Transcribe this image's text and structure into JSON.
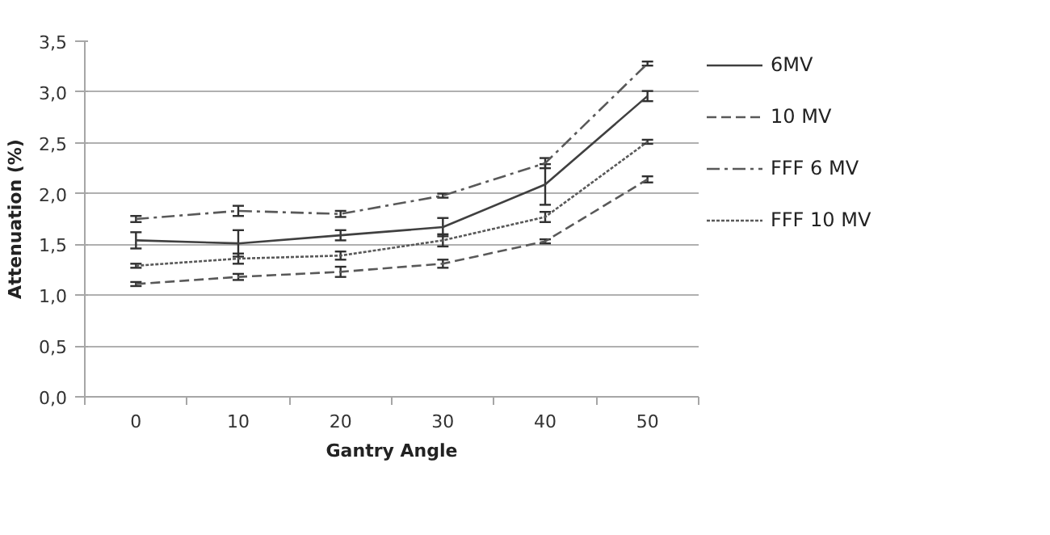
{
  "chart_data": {
    "type": "line",
    "xlabel": "Gantry Angle",
    "ylabel": "Attenuation (%)",
    "categories": [
      "0",
      "10",
      "20",
      "30",
      "40",
      "50"
    ],
    "series": [
      {
        "name": "6MV",
        "color": "#404040",
        "line_style": "solid",
        "values": [
          1.54,
          1.51,
          1.59,
          1.67,
          2.09,
          2.96
        ],
        "errors": [
          0.08,
          0.13,
          0.05,
          0.09,
          0.2,
          0.05
        ]
      },
      {
        "name": "10 MV",
        "color": "#595959",
        "line_style": "dashed",
        "values": [
          1.11,
          1.18,
          1.23,
          1.31,
          1.53,
          2.14
        ],
        "errors": [
          0.02,
          0.03,
          0.05,
          0.04,
          0.02,
          0.03
        ]
      },
      {
        "name": "FFF 6 MV",
        "color": "#595959",
        "line_style": "dashdot",
        "values": [
          1.75,
          1.83,
          1.8,
          1.98,
          2.3,
          3.28
        ],
        "errors": [
          0.03,
          0.05,
          0.03,
          0.02,
          0.05,
          0.02
        ]
      },
      {
        "name": "FFF 10 MV",
        "color": "#595959",
        "line_style": "dotted",
        "values": [
          1.29,
          1.36,
          1.39,
          1.54,
          1.77,
          2.51
        ],
        "errors": [
          0.02,
          0.05,
          0.04,
          0.06,
          0.05,
          0.02
        ]
      }
    ],
    "ylim": [
      0,
      3.5
    ],
    "yticks": [
      {
        "value": 0,
        "label": "0,0"
      },
      {
        "value": 0.5,
        "label": "0,5"
      },
      {
        "value": 1,
        "label": "1,0"
      },
      {
        "value": 1.5,
        "label": "1,5"
      },
      {
        "value": 2,
        "label": "2,0"
      },
      {
        "value": 2.5,
        "label": "2,5"
      },
      {
        "value": 3,
        "label": "3,0"
      },
      {
        "value": 3.5,
        "label": "3,5"
      }
    ],
    "grid": "y",
    "legend": "right",
    "marker": "none"
  }
}
